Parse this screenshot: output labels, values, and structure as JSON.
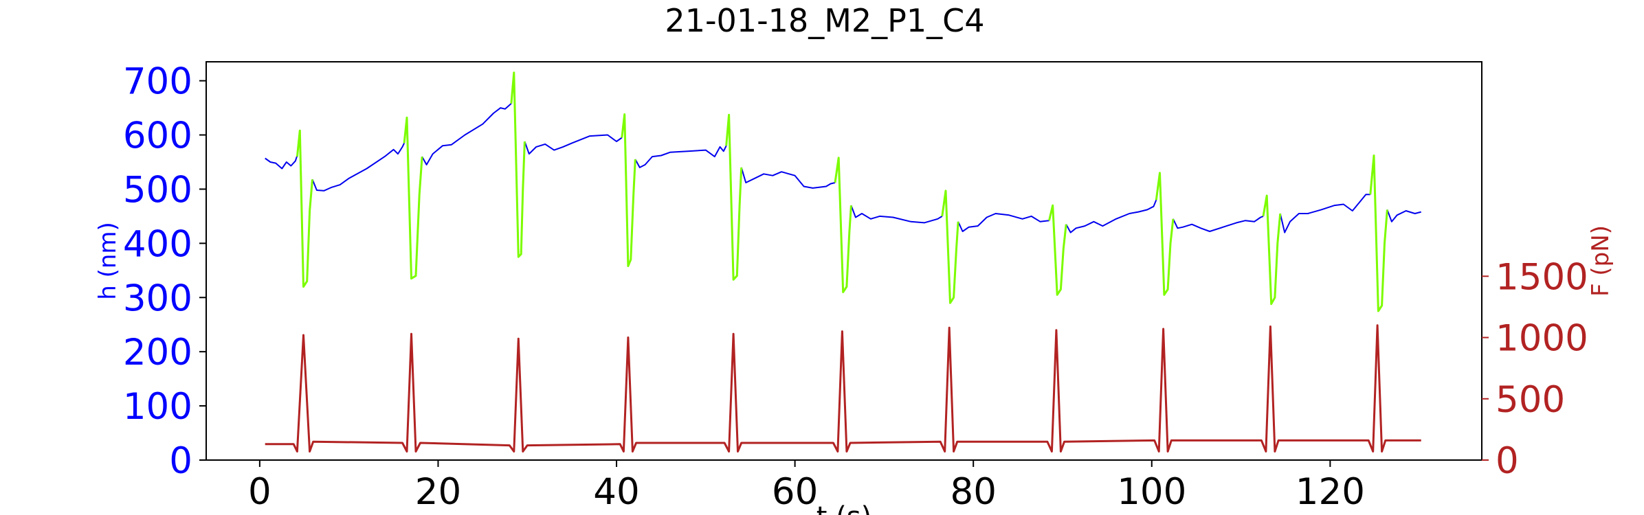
{
  "chart_data": {
    "type": "line",
    "title": "21-01-18_M2_P1_C4",
    "xlabel": "t (s)",
    "ylabel_left": "h (nm)",
    "ylabel_right": "F (pN)",
    "xlim": [
      -6,
      137
    ],
    "ylim_left": [
      0,
      735
    ],
    "ylim_right": [
      0,
      3250
    ],
    "x_ticks": [
      0,
      20,
      40,
      60,
      80,
      100,
      120
    ],
    "y_left_ticks": [
      0,
      100,
      200,
      300,
      400,
      500,
      600,
      700
    ],
    "y_right_ticks": [
      0,
      500,
      1000,
      1500
    ],
    "grid": false,
    "colors": {
      "height_rest": "#0000ee",
      "height_compression": "#7cfc00",
      "force": "#b22222",
      "left_axis": "#0000ff",
      "right_axis": "#b22222"
    },
    "series": [
      {
        "axis": "left",
        "color": "#0000ee",
        "x": [
          0.6,
          1.2,
          1.8,
          2.5,
          3.0,
          3.5,
          4.0,
          4.2
        ],
        "y": [
          557,
          550,
          548,
          538,
          550,
          543,
          552,
          562
        ]
      },
      {
        "axis": "left",
        "color": "#0000ee",
        "x": [
          5.9,
          6.4,
          7.2,
          8.0,
          9.0,
          10.0,
          12.0,
          14.0,
          15.0,
          15.5,
          16.0,
          16.2
        ],
        "y": [
          518,
          498,
          497,
          503,
          508,
          520,
          538,
          560,
          573,
          565,
          578,
          585
        ]
      },
      {
        "axis": "left",
        "color": "#0000ee",
        "x": [
          18.2,
          18.7,
          19.4,
          20.5,
          21.5,
          23.0,
          25.0,
          26.2,
          27.0,
          27.5,
          28.2
        ],
        "y": [
          560,
          545,
          565,
          580,
          582,
          600,
          620,
          640,
          650,
          648,
          658
        ]
      },
      {
        "axis": "left",
        "color": "#0000ee",
        "x": [
          29.7,
          30.2,
          31.0,
          32.0,
          33.0,
          34.0,
          35.0,
          37.0,
          39.0,
          40.0,
          40.6
        ],
        "y": [
          588,
          565,
          578,
          583,
          572,
          578,
          585,
          598,
          600,
          588,
          595
        ]
      },
      {
        "axis": "left",
        "color": "#0000ee",
        "x": [
          42.1,
          42.6,
          43.2,
          44.0,
          45.0,
          46.0,
          48.0,
          50.0,
          51.0,
          51.6,
          52.0,
          52.3
        ],
        "y": [
          555,
          540,
          545,
          560,
          562,
          568,
          570,
          572,
          560,
          578,
          570,
          580
        ]
      },
      {
        "axis": "left",
        "color": "#0000ee",
        "x": [
          54.0,
          54.5,
          55.5,
          56.5,
          57.5,
          58.5,
          60.0,
          61.0,
          62.0,
          63.5,
          64.0,
          64.5
        ],
        "y": [
          540,
          512,
          520,
          528,
          525,
          532,
          525,
          505,
          502,
          505,
          510,
          512
        ]
      },
      {
        "axis": "left",
        "color": "#0000ee",
        "x": [
          66.3,
          66.8,
          67.5,
          68.5,
          69.5,
          71.0,
          73.0,
          74.5,
          76.0,
          76.5
        ],
        "y": [
          470,
          448,
          455,
          445,
          450,
          448,
          440,
          438,
          445,
          450
        ]
      },
      {
        "axis": "left",
        "color": "#0000ee",
        "x": [
          78.3,
          78.8,
          79.5,
          80.5,
          81.5,
          82.5,
          84.0,
          85.5,
          86.5,
          87.5,
          88.5
        ],
        "y": [
          440,
          422,
          430,
          432,
          448,
          455,
          452,
          445,
          450,
          440,
          442
        ]
      },
      {
        "axis": "left",
        "color": "#0000ee",
        "x": [
          90.4,
          90.9,
          91.5,
          92.5,
          93.5,
          94.5,
          96.0,
          97.5,
          98.5,
          99.5,
          100.2,
          100.5
        ],
        "y": [
          435,
          420,
          428,
          432,
          440,
          432,
          445,
          455,
          458,
          462,
          468,
          480
        ]
      },
      {
        "axis": "left",
        "color": "#0000ee",
        "x": [
          102.4,
          102.9,
          103.5,
          104.5,
          105.5,
          106.5,
          108.0,
          109.5,
          110.5,
          111.5,
          112.2,
          112.5
        ],
        "y": [
          445,
          428,
          430,
          435,
          428,
          422,
          430,
          438,
          442,
          440,
          448,
          450
        ]
      },
      {
        "axis": "left",
        "color": "#0000ee",
        "x": [
          114.4,
          114.9,
          115.5,
          116.5,
          117.5,
          119.0,
          120.5,
          121.5,
          122.5,
          123.5,
          124.0,
          124.5
        ],
        "y": [
          455,
          420,
          440,
          455,
          455,
          462,
          470,
          472,
          460,
          480,
          490,
          490
        ]
      },
      {
        "axis": "left",
        "color": "#0000ee",
        "x": [
          126.4,
          126.9,
          127.5,
          128.5,
          129.5,
          130.2
        ],
        "y": [
          462,
          440,
          452,
          460,
          455,
          458
        ]
      },
      {
        "axis": "left",
        "color": "#7cfc00",
        "x": [
          4.2,
          4.5,
          4.9,
          5.3,
          5.6,
          5.9
        ],
        "y": [
          560,
          608,
          320,
          330,
          460,
          518
        ]
      },
      {
        "axis": "left",
        "color": "#7cfc00",
        "x": [
          16.2,
          16.5,
          17.0,
          17.5,
          17.9,
          18.2
        ],
        "y": [
          585,
          632,
          335,
          340,
          490,
          560
        ]
      },
      {
        "axis": "left",
        "color": "#7cfc00",
        "x": [
          28.2,
          28.5,
          29.0,
          29.3,
          29.5,
          29.7
        ],
        "y": [
          658,
          715,
          375,
          380,
          500,
          588
        ]
      },
      {
        "axis": "left",
        "color": "#7cfc00",
        "x": [
          40.6,
          40.9,
          41.3,
          41.6,
          41.9,
          42.1
        ],
        "y": [
          595,
          638,
          358,
          370,
          490,
          555
        ]
      },
      {
        "axis": "left",
        "color": "#7cfc00",
        "x": [
          52.3,
          52.6,
          53.1,
          53.5,
          53.8,
          54.0
        ],
        "y": [
          580,
          637,
          333,
          340,
          470,
          540
        ]
      },
      {
        "axis": "left",
        "color": "#7cfc00",
        "x": [
          64.5,
          64.9,
          65.4,
          65.8,
          66.1,
          66.3
        ],
        "y": [
          512,
          558,
          310,
          320,
          420,
          470
        ]
      },
      {
        "axis": "left",
        "color": "#7cfc00",
        "x": [
          76.5,
          76.9,
          77.4,
          77.8,
          78.1,
          78.3
        ],
        "y": [
          450,
          497,
          290,
          300,
          390,
          440
        ]
      },
      {
        "axis": "left",
        "color": "#7cfc00",
        "x": [
          88.5,
          88.9,
          89.4,
          89.8,
          90.1,
          90.4
        ],
        "y": [
          442,
          470,
          305,
          315,
          390,
          435
        ]
      },
      {
        "axis": "left",
        "color": "#7cfc00",
        "x": [
          100.5,
          100.9,
          101.4,
          101.8,
          102.1,
          102.4
        ],
        "y": [
          480,
          530,
          305,
          315,
          400,
          445
        ]
      },
      {
        "axis": "left",
        "color": "#7cfc00",
        "x": [
          112.5,
          112.9,
          113.4,
          113.8,
          114.1,
          114.4
        ],
        "y": [
          450,
          488,
          288,
          300,
          400,
          455
        ]
      },
      {
        "axis": "left",
        "color": "#7cfc00",
        "x": [
          124.5,
          124.9,
          125.4,
          125.8,
          126.1,
          126.4
        ],
        "y": [
          490,
          562,
          275,
          285,
          400,
          462
        ]
      },
      {
        "axis": "right",
        "color": "#b22222",
        "x": [
          0.6,
          3.8,
          4.2,
          4.9,
          5.6,
          6.0,
          16.0,
          16.5,
          17.0,
          17.5,
          18.0,
          28.0,
          28.5,
          29.0,
          29.5,
          30.0,
          40.4,
          40.8,
          41.3,
          41.8,
          42.2,
          52.1,
          52.6,
          53.1,
          53.6,
          54.0,
          64.3,
          64.8,
          65.3,
          65.8,
          66.2,
          76.3,
          76.8,
          77.3,
          77.8,
          78.2,
          88.3,
          88.8,
          89.3,
          89.8,
          90.2,
          100.3,
          100.8,
          101.3,
          101.8,
          102.2,
          112.3,
          112.8,
          113.3,
          113.8,
          114.2,
          124.3,
          124.8,
          125.3,
          125.8,
          126.2,
          130.2
        ],
        "y": [
          130,
          130,
          70,
          1020,
          70,
          150,
          140,
          70,
          1030,
          70,
          140,
          120,
          70,
          990,
          70,
          120,
          130,
          70,
          1000,
          70,
          140,
          140,
          70,
          1030,
          70,
          140,
          140,
          70,
          1050,
          70,
          140,
          150,
          70,
          1080,
          70,
          150,
          150,
          70,
          1060,
          70,
          150,
          160,
          70,
          1070,
          70,
          160,
          160,
          70,
          1090,
          70,
          160,
          160,
          70,
          1100,
          70,
          160,
          160
        ]
      }
    ]
  }
}
